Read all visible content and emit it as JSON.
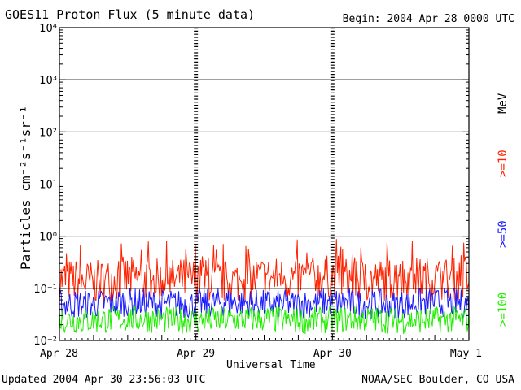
{
  "header": {
    "title": "GOES11 Proton Flux (5 minute data)",
    "begin": "Begin: 2004 Apr 28 0000 UTC"
  },
  "footer": {
    "updated": "Updated 2004 Apr 30 23:56:03 UTC",
    "credit": "NOAA/SEC Boulder, CO USA"
  },
  "chart_data": {
    "type": "line",
    "title": "GOES11 Proton Flux (5 minute data)",
    "xlabel": "Universal Time",
    "ylabel": "Particles cm⁻²s⁻¹sr⁻¹",
    "x_ticks": [
      "Apr 28",
      "Apr 29",
      "Apr 30",
      "May 1"
    ],
    "y_scale": "log",
    "ylim": [
      0.01,
      10000
    ],
    "y_ticks": [
      "10⁻²",
      "10⁻¹",
      "10⁰",
      "10¹",
      "10²",
      "10³",
      "10⁴"
    ],
    "units_label": "MeV",
    "grid": "horizontal",
    "series": [
      {
        "name": ">=10",
        "color": "#ff2200",
        "x_days": [
          0,
          0.25,
          0.5,
          0.75,
          1,
          1.25,
          1.5,
          1.75,
          2,
          2.25,
          2.5,
          2.75,
          3
        ],
        "values": [
          0.15,
          0.13,
          0.16,
          0.14,
          0.15,
          0.13,
          0.16,
          0.15,
          0.17,
          0.14,
          0.16,
          0.15,
          0.15
        ]
      },
      {
        "name": ">=50",
        "color": "#1a1aff",
        "x_days": [
          0,
          0.25,
          0.5,
          0.75,
          1,
          1.25,
          1.5,
          1.75,
          2,
          2.25,
          2.5,
          2.75,
          3
        ],
        "values": [
          0.05,
          0.05,
          0.055,
          0.05,
          0.05,
          0.055,
          0.05,
          0.05,
          0.055,
          0.05,
          0.05,
          0.055,
          0.05
        ]
      },
      {
        "name": ">=100",
        "color": "#22ee00",
        "x_days": [
          0,
          0.25,
          0.5,
          0.75,
          1,
          1.25,
          1.5,
          1.75,
          2,
          2.25,
          2.5,
          2.75,
          3
        ],
        "values": [
          0.025,
          0.024,
          0.026,
          0.025,
          0.024,
          0.025,
          0.026,
          0.024,
          0.025,
          0.026,
          0.024,
          0.025,
          0.025
        ]
      }
    ]
  }
}
